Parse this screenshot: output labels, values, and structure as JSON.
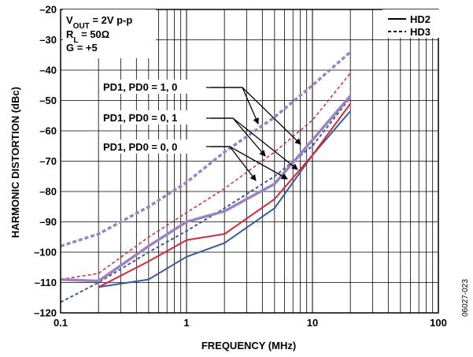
{
  "chart_data": {
    "type": "line",
    "xlabel": "FREQUENCY (MHz)",
    "ylabel": "HARMONIC DISTORTION (dBc)",
    "xscale": "log",
    "xlim": [
      0.1,
      100
    ],
    "ylim": [
      -120,
      -20
    ],
    "grid": true,
    "x_ticks": [
      {
        "value": 0.1,
        "label": "0.1"
      },
      {
        "value": 1,
        "label": "1"
      },
      {
        "value": 10,
        "label": "10"
      },
      {
        "value": 100,
        "label": "100"
      }
    ],
    "y_ticks": [
      {
        "value": -20,
        "label": "–20"
      },
      {
        "value": -30,
        "label": "–30"
      },
      {
        "value": -40,
        "label": "–40"
      },
      {
        "value": -50,
        "label": "–50"
      },
      {
        "value": -60,
        "label": "–60"
      },
      {
        "value": -70,
        "label": "–70"
      },
      {
        "value": -80,
        "label": "–80"
      },
      {
        "value": -90,
        "label": "–90"
      },
      {
        "value": -100,
        "label": "–100"
      },
      {
        "value": -110,
        "label": "–110"
      },
      {
        "value": -120,
        "label": "–120"
      }
    ],
    "conditions": {
      "vout_main": "V",
      "vout_sub": "OUT",
      "vout_rest": " = 2V p-p",
      "rl_main": "R",
      "rl_sub": "L",
      "rl_rest": " = 50Ω",
      "gain": "G = +5"
    },
    "legend": {
      "position": "top-right",
      "items": [
        {
          "label": "HD2",
          "style": "solid"
        },
        {
          "label": "HD3",
          "style": "dashed"
        }
      ]
    },
    "annotations": [
      {
        "text": "PD1, PD0 = 1, 0"
      },
      {
        "text": "PD1, PD0 = 0, 1"
      },
      {
        "text": "PD1, PD0 = 0, 0"
      }
    ],
    "figure_id": "06027-023",
    "series": [
      {
        "color": "#3a5a9b",
        "style": "solid",
        "width": 2,
        "x": [
          0.2,
          0.5,
          1,
          2,
          5,
          10,
          20
        ],
        "y": [
          -111.5,
          -109,
          -101.5,
          -97,
          -85.5,
          -68,
          -53.5
        ]
      },
      {
        "color": "#3a5a9b",
        "style": "dashed",
        "width": 2,
        "x": [
          0.1,
          0.2,
          0.5,
          1,
          2,
          5,
          10,
          20
        ],
        "y": [
          -116.5,
          -110,
          -100,
          -93,
          -85.5,
          -75,
          -65,
          -49
        ]
      },
      {
        "color": "#d8263b",
        "style": "solid",
        "width": 2,
        "x": [
          0.2,
          0.5,
          1,
          2,
          5,
          10,
          20
        ],
        "y": [
          -111.5,
          -103,
          -96,
          -94,
          -82.5,
          -68,
          -51
        ]
      },
      {
        "color": "#d8263b",
        "style": "dashed",
        "width": 1.5,
        "x": [
          0.1,
          0.2,
          0.5,
          1,
          2,
          5,
          10,
          20
        ],
        "y": [
          -109,
          -107,
          -95,
          -87,
          -79,
          -67,
          -56.5,
          -41
        ]
      },
      {
        "color": "#9b82c2",
        "style": "solid",
        "width": 3.5,
        "x": [
          0.1,
          0.2,
          0.5,
          1,
          2,
          5,
          10,
          20
        ],
        "y": [
          -109,
          -109.5,
          -98,
          -90,
          -86.5,
          -77.5,
          -63,
          -48.5
        ]
      },
      {
        "color": "#9b82c2",
        "style": "dashed",
        "width": 3.5,
        "x": [
          0.1,
          0.2,
          0.5,
          1,
          2,
          5,
          10,
          20
        ],
        "y": [
          -98,
          -94,
          -85,
          -77,
          -67,
          -55.5,
          -45,
          -34
        ]
      }
    ]
  }
}
